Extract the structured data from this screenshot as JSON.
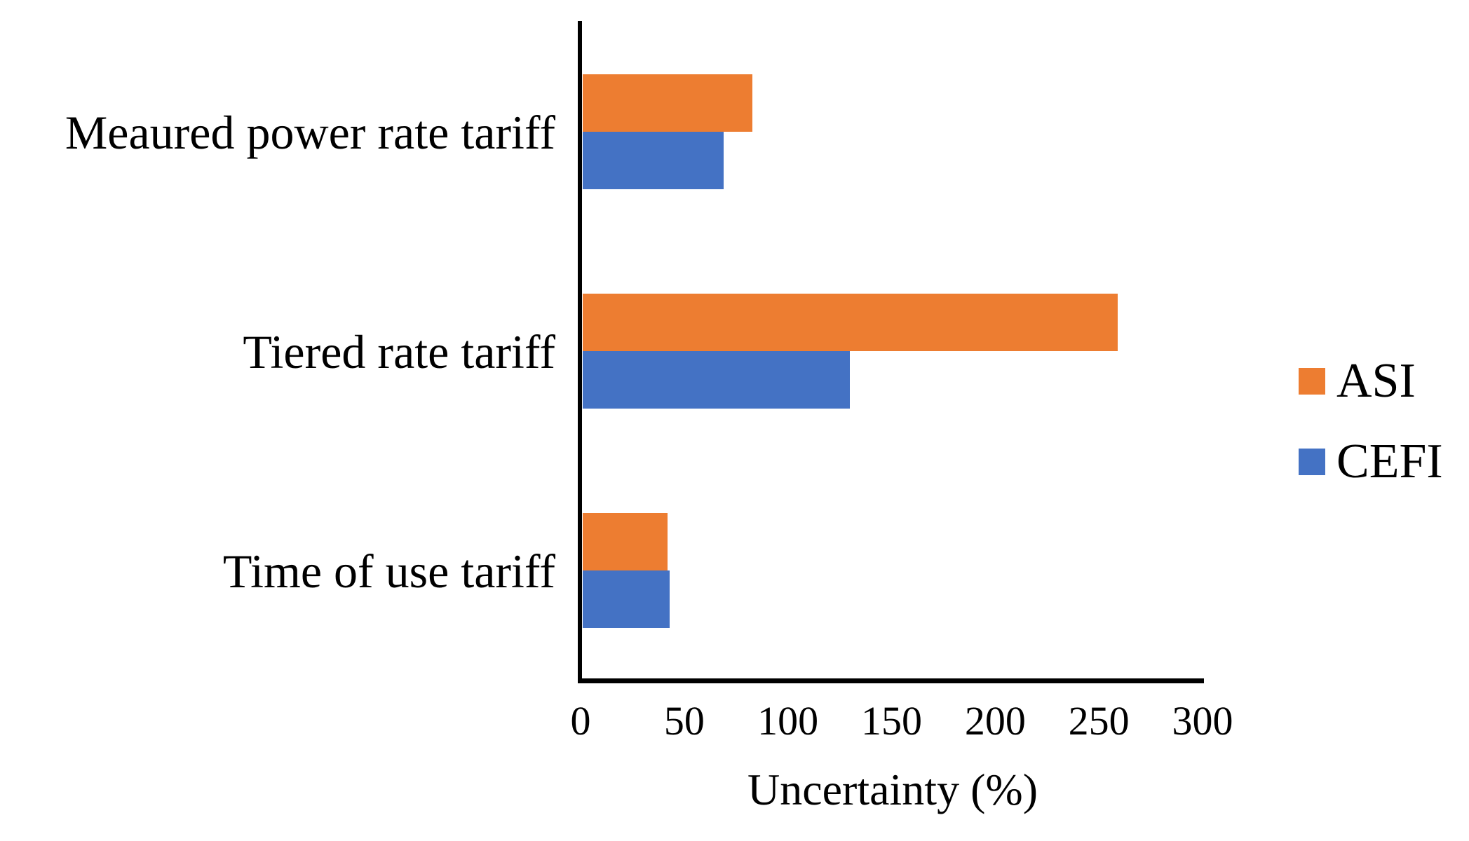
{
  "chart_data": {
    "type": "bar",
    "orientation": "horizontal",
    "title": "",
    "xlabel": "Uncertainty (%)",
    "ylabel": "",
    "categories": [
      "Meaured power rate tariff",
      "Tiered rate tariff",
      "Time of use tariff"
    ],
    "series": [
      {
        "name": "ASI",
        "color": "#ED7D31",
        "values": [
          82,
          258,
          41
        ]
      },
      {
        "name": "CEFI",
        "color": "#4472C4",
        "values": [
          68,
          129,
          42
        ]
      }
    ],
    "xlim": [
      0,
      300
    ],
    "xticks": [
      0,
      50,
      100,
      150,
      200,
      250,
      300
    ],
    "grid": false,
    "legend_position": "right"
  },
  "colors": {
    "axis": "#000000",
    "text": "#000000",
    "background": "#FFFFFF"
  }
}
